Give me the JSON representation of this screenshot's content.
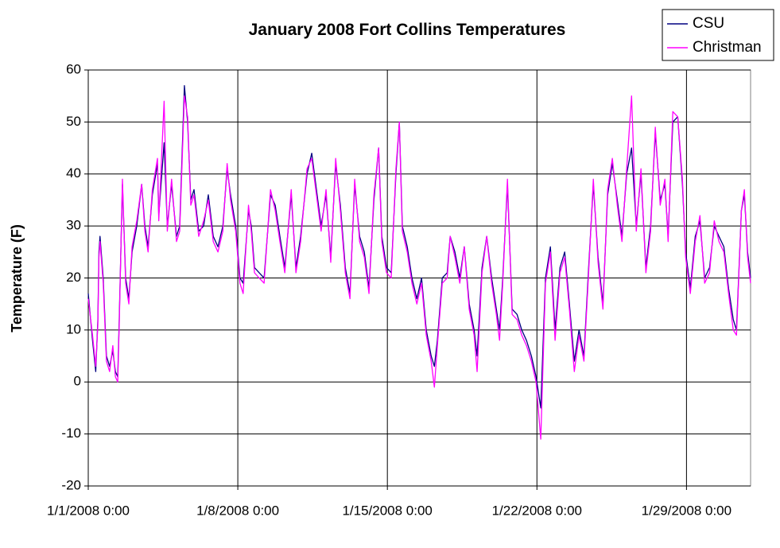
{
  "chart_data": {
    "type": "line",
    "title": "January 2008 Fort Collins Temperatures",
    "y_label": "Temperature (F)",
    "x": [
      0,
      0.2,
      0.35,
      0.45,
      0.5,
      0.55,
      0.7,
      0.85,
      1.0,
      1.15,
      1.27,
      1.38,
      1.45,
      1.6,
      1.75,
      1.9,
      2.05,
      2.27,
      2.5,
      2.65,
      2.8,
      3.0,
      3.24,
      3.3,
      3.55,
      3.7,
      3.9,
      4.13,
      4.28,
      4.5,
      4.65,
      4.8,
      4.95,
      5.17,
      5.4,
      5.62,
      5.85,
      6.07,
      6.3,
      6.5,
      6.66,
      6.9,
      7.1,
      7.25,
      7.5,
      7.63,
      7.78,
      8.0,
      8.23,
      8.53,
      8.75,
      8.97,
      9.2,
      9.5,
      9.72,
      9.94,
      10.24,
      10.46,
      10.68,
      10.9,
      11.13,
      11.35,
      11.58,
      11.8,
      12.03,
      12.25,
      12.47,
      12.7,
      12.92,
      13.14,
      13.37,
      13.59,
      13.74,
      13.96,
      14.18,
      14.4,
      14.56,
      14.7,
      14.93,
      15.15,
      15.38,
      15.6,
      15.82,
      16.05,
      16.2,
      16.34,
      16.57,
      16.8,
      16.94,
      17.16,
      17.39,
      17.6,
      17.83,
      18.06,
      18.2,
      18.43,
      18.65,
      18.88,
      19.1,
      19.25,
      19.4,
      19.62,
      19.84,
      20.07,
      20.29,
      20.51,
      20.74,
      20.96,
      21.18,
      21.4,
      21.63,
      21.85,
      22.08,
      22.3,
      22.52,
      22.75,
      22.97,
      23.2,
      23.42,
      23.64,
      23.86,
      24.09,
      24.31,
      24.53,
      24.76,
      24.98,
      25.2,
      25.43,
      25.65,
      25.87,
      26.1,
      26.32,
      26.54,
      26.77,
      26.99,
      27.14,
      27.36,
      27.59,
      27.81,
      27.96,
      28.18,
      28.41,
      28.63,
      28.85,
      29.08,
      29.3,
      29.52,
      29.75,
      29.97,
      30.19,
      30.34,
      30.57,
      30.71,
      30.86,
      31.0
    ],
    "series": [
      {
        "name": "CSU",
        "color": "#000080",
        "values": [
          17,
          8,
          2,
          12,
          25,
          28,
          20,
          5,
          3,
          6,
          2,
          1,
          12,
          38,
          20,
          16,
          25,
          30,
          38,
          30,
          26,
          36,
          42,
          32,
          46,
          30,
          38,
          28,
          30,
          57,
          50,
          35,
          37,
          29,
          30,
          36,
          28,
          26,
          30,
          41,
          36,
          30,
          20,
          19,
          33,
          30,
          22,
          21,
          20,
          36,
          34,
          28,
          22,
          36,
          22,
          28,
          40,
          44,
          37,
          30,
          36,
          24,
          42,
          34,
          22,
          17,
          38,
          28,
          25,
          18,
          35,
          45,
          28,
          22,
          21,
          40,
          50,
          30,
          26,
          20,
          16,
          20,
          10,
          5,
          3,
          8,
          20,
          21,
          28,
          25,
          20,
          26,
          15,
          10,
          5,
          22,
          28,
          20,
          14,
          10,
          20,
          38,
          14,
          13,
          10,
          8,
          5,
          1,
          -5,
          20,
          26,
          10,
          22,
          25,
          15,
          4,
          10,
          5,
          22,
          38,
          24,
          15,
          36,
          42,
          35,
          28,
          40,
          45,
          30,
          40,
          22,
          30,
          48,
          35,
          38,
          28,
          50,
          51,
          38,
          25,
          18,
          28,
          31,
          20,
          22,
          30,
          28,
          26,
          18,
          12,
          10,
          33,
          36,
          25,
          20
        ]
      },
      {
        "name": "Christman",
        "color": "#ff00ff",
        "values": [
          16,
          9,
          3,
          11,
          24,
          27,
          19,
          4,
          2,
          7,
          1,
          0,
          11,
          39,
          19,
          15,
          26,
          31,
          38,
          29,
          25,
          37,
          43,
          31,
          54,
          29,
          39,
          27,
          29,
          55,
          51,
          34,
          36,
          28,
          31,
          35,
          27,
          25,
          29,
          42,
          35,
          29,
          19,
          17,
          34,
          29,
          21,
          20,
          19,
          37,
          33,
          27,
          21,
          37,
          21,
          27,
          41,
          43,
          36,
          29,
          37,
          23,
          43,
          33,
          21,
          16,
          39,
          27,
          24,
          17,
          36,
          45,
          27,
          21,
          20,
          41,
          50,
          29,
          25,
          19,
          15,
          19,
          9,
          4,
          -1,
          7,
          19,
          20,
          28,
          24,
          19,
          26,
          14,
          9,
          2,
          21,
          28,
          19,
          13,
          8,
          19,
          39,
          13,
          12,
          9,
          7,
          4,
          0,
          -11,
          19,
          25,
          8,
          21,
          24,
          14,
          2,
          9,
          4,
          21,
          39,
          23,
          14,
          37,
          43,
          34,
          27,
          41,
          55,
          29,
          41,
          21,
          29,
          49,
          34,
          39,
          27,
          52,
          51,
          39,
          24,
          17,
          27,
          32,
          19,
          21,
          31,
          27,
          25,
          17,
          10,
          9,
          33,
          37,
          24,
          19
        ]
      }
    ],
    "xlim": [
      0,
      31
    ],
    "xticks": [
      {
        "value": 0,
        "label": "1/1/2008 0:00"
      },
      {
        "value": 7,
        "label": "1/8/2008 0:00"
      },
      {
        "value": 14,
        "label": "1/15/2008 0:00"
      },
      {
        "value": 21,
        "label": "1/22/2008 0:00"
      },
      {
        "value": 28,
        "label": "1/29/2008 0:00"
      }
    ],
    "ylim": [
      -20,
      60
    ],
    "yticks": [
      -20,
      -10,
      0,
      10,
      20,
      30,
      40,
      50,
      60
    ],
    "grid": true,
    "legend": "top-right"
  }
}
